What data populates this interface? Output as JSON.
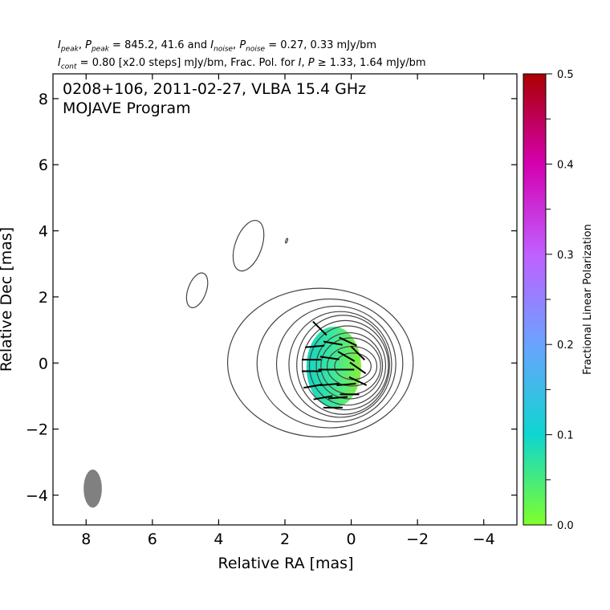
{
  "header": {
    "line1": {
      "peak_values": "845.2, 41.6",
      "noise_values": "0.27, 0.33 mJy/bm"
    },
    "line2": {
      "cont_value": " = 0.80 [x2.0 steps] mJy/bm, Frac. Pol. for ",
      "threshold": "1.33, 1.64 mJy/bm"
    }
  },
  "chart_data": {
    "type": "contour",
    "title": "0208+106, 2011-02-27, VLBA 15.4 GHz",
    "subtitle": "MOJAVE Program",
    "xlabel": "Relative RA [mas]",
    "ylabel": "Relative Dec [mas]",
    "xlim": [
      9.0,
      -5.0
    ],
    "ylim": [
      -4.9,
      8.75
    ],
    "x_ticks": [
      8,
      6,
      4,
      2,
      0,
      -2,
      -4
    ],
    "x_tick_labels": [
      "8",
      "6",
      "4",
      "2",
      "0",
      "−2",
      "−4"
    ],
    "y_ticks": [
      -4,
      -2,
      0,
      2,
      4,
      6,
      8
    ],
    "y_tick_labels": [
      "−4",
      "−2",
      "0",
      "2",
      "4",
      "6",
      "8"
    ],
    "colorbar": {
      "label": "Fractional Linear Polarization",
      "range": [
        0.0,
        0.5
      ],
      "ticks": [
        0.0,
        0.1,
        0.2,
        0.3,
        0.4,
        0.5
      ],
      "tick_labels": [
        "0.0",
        "0.1",
        "0.2",
        "0.3",
        "0.4",
        "0.5"
      ],
      "colors": [
        "#7fff2a",
        "#0ed6d0",
        "#6aa3ff",
        "#c060ff",
        "#d400b0",
        "#aa0000"
      ]
    },
    "core": {
      "ra": -0.05,
      "dec": -0.1,
      "contour_radii_ra": [
        0.55,
        0.75,
        0.9,
        1.0,
        1.15,
        1.3,
        1.4,
        1.55,
        1.8,
        2.2,
        2.8
      ],
      "contour_radii_dec": [
        0.4,
        0.6,
        0.85,
        1.0,
        1.2,
        1.35,
        1.5,
        1.6,
        1.75,
        1.95,
        2.25
      ]
    },
    "outer_components": [
      {
        "ra": 4.65,
        "dec": 2.2,
        "width": 0.55,
        "height": 1.1
      },
      {
        "ra": 3.1,
        "dec": 3.55,
        "width": 0.8,
        "height": 1.6
      },
      {
        "ra": 1.95,
        "dec": 3.7,
        "width": 0.05,
        "height": 0.15
      }
    ],
    "polarization_region": {
      "ra_range": [
        -0.3,
        1.35
      ],
      "dec_range": [
        -1.35,
        1.1
      ],
      "frac_pol_min": 0.0,
      "frac_pol_max": 0.12
    },
    "evpa_vectors": [
      {
        "ra": 1.1,
        "dec": 0.5,
        "angle_deg": 5
      },
      {
        "ra": 0.55,
        "dec": 0.6,
        "angle_deg": -10
      },
      {
        "ra": 0.1,
        "dec": 0.65,
        "angle_deg": -25
      },
      {
        "ra": 1.2,
        "dec": 0.1,
        "angle_deg": 0
      },
      {
        "ra": 0.65,
        "dec": 0.15,
        "angle_deg": -8
      },
      {
        "ra": 0.15,
        "dec": 0.2,
        "angle_deg": -30
      },
      {
        "ra": -0.2,
        "dec": 0.3,
        "angle_deg": -45
      },
      {
        "ra": 1.2,
        "dec": -0.25,
        "angle_deg": 0
      },
      {
        "ra": 0.7,
        "dec": -0.2,
        "angle_deg": 0
      },
      {
        "ra": 0.2,
        "dec": -0.2,
        "angle_deg": 0
      },
      {
        "ra": -0.2,
        "dec": -0.15,
        "angle_deg": -35
      },
      {
        "ra": 1.15,
        "dec": -0.7,
        "angle_deg": 10
      },
      {
        "ra": 0.65,
        "dec": -0.65,
        "angle_deg": 5
      },
      {
        "ra": 0.15,
        "dec": -0.65,
        "angle_deg": 5
      },
      {
        "ra": -0.2,
        "dec": -0.55,
        "angle_deg": -25
      },
      {
        "ra": 0.85,
        "dec": -1.05,
        "angle_deg": 10
      },
      {
        "ra": 0.4,
        "dec": -1.05,
        "angle_deg": 5
      },
      {
        "ra": 0.05,
        "dec": -0.95,
        "angle_deg": 0
      },
      {
        "ra": 0.55,
        "dec": -1.35,
        "angle_deg": 0
      },
      {
        "ra": 0.95,
        "dec": 1.05,
        "angle_deg": -45
      }
    ],
    "beam": {
      "ra": 7.8,
      "dec": -3.8,
      "major": 1.15,
      "minor": 0.55,
      "pa_deg": 0
    }
  }
}
